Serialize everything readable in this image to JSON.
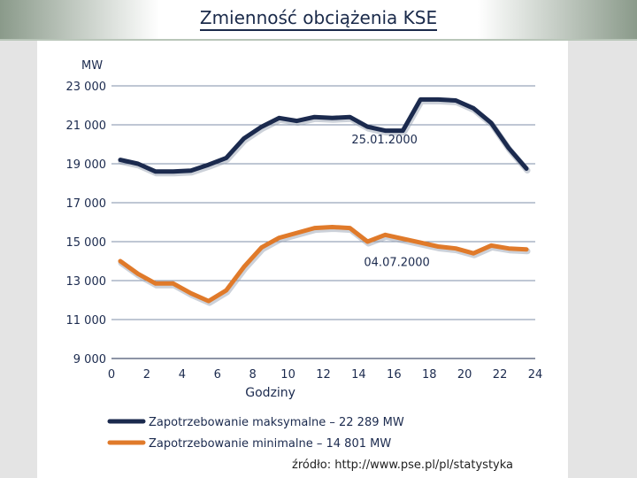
{
  "slide": {
    "title": "Zmienność obciążenia KSE",
    "source": "źródło: http://www.pse.pl/pl/statystyka"
  },
  "chart_data": {
    "type": "line",
    "ylabel": "MW",
    "xlabel": "Godziny",
    "xlim": [
      0,
      24
    ],
    "ylim": [
      9000,
      23000
    ],
    "x_ticks": [
      0,
      2,
      4,
      6,
      8,
      10,
      12,
      14,
      16,
      18,
      20,
      22,
      24
    ],
    "y_ticks": [
      9000,
      11000,
      13000,
      15000,
      17000,
      19000,
      21000,
      23000
    ],
    "x_tick_labels": [
      "0",
      "2",
      "4",
      "6",
      "8",
      "10",
      "12",
      "14",
      "16",
      "18",
      "20",
      "22",
      "24"
    ],
    "y_tick_labels": [
      "9 000",
      "11 000",
      "13 000",
      "15 000",
      "17 000",
      "19 000",
      "21 000",
      "23 000"
    ],
    "grid": true,
    "series": [
      {
        "name": "Zapotrzebowanie maksymalne – 22 289 MW",
        "annotation": "25.01.2000",
        "color": "#1b2a4e",
        "x": [
          0.5,
          1.5,
          2.5,
          3.5,
          4.5,
          5.5,
          6.5,
          7.5,
          8.5,
          9.5,
          10.5,
          11.5,
          12.5,
          13.5,
          14.5,
          15.5,
          16.5,
          17.5,
          18.5,
          19.5,
          20.5,
          21.5,
          22.5,
          23.5
        ],
        "y": [
          19200,
          19000,
          18600,
          18600,
          18650,
          18950,
          19300,
          20300,
          20900,
          21350,
          21200,
          21400,
          21350,
          21400,
          20900,
          20700,
          20700,
          22300,
          22300,
          22250,
          21850,
          21100,
          19800,
          18750
        ]
      },
      {
        "name": "Zapotrzebowanie minimalne – 14 801 MW",
        "annotation": "04.07.2000",
        "color": "#e07a2a",
        "x": [
          0.5,
          1.5,
          2.5,
          3.5,
          4.5,
          5.5,
          6.5,
          7.5,
          8.5,
          9.5,
          10.5,
          11.5,
          12.5,
          13.5,
          14.5,
          15.5,
          16.5,
          17.5,
          18.5,
          19.5,
          20.5,
          21.5,
          22.5,
          23.5
        ],
        "y": [
          14000,
          13350,
          12850,
          12850,
          12350,
          11950,
          12500,
          13700,
          14700,
          15200,
          15450,
          15700,
          15750,
          15700,
          15000,
          15350,
          15150,
          14950,
          14750,
          14650,
          14400,
          14800,
          14650,
          14600
        ]
      }
    ],
    "legend_position": "bottom"
  }
}
